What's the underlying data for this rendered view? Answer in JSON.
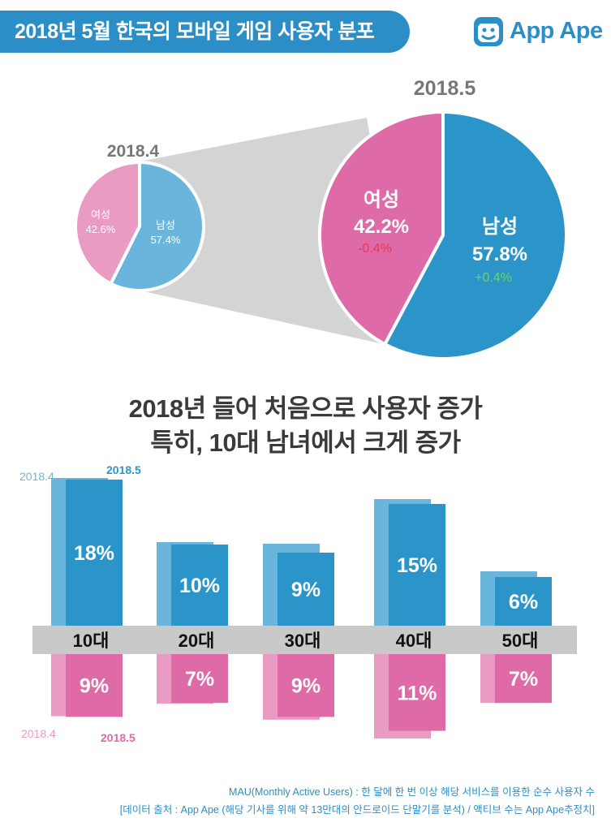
{
  "header": {
    "title": "2018년 5월 한국의 모바일 게임 사용자 분포",
    "logo_text": "App Ape",
    "brand_color": "#2b8ec6"
  },
  "colors": {
    "male_prev": "#6ab5dc",
    "male_curr": "#2b95c9",
    "female_prev": "#e99bc4",
    "female_curr": "#df6aa8",
    "zoom_fill": "#d4d4d4",
    "axis_band": "#c9c9c9",
    "negative": "#e8364e",
    "positive": "#5db84a"
  },
  "headline": {
    "line1": "2018년 들어 처음으로 사용자 증가",
    "line2": "특히, 10대 남녀에서 크게 증가"
  },
  "chart_data": [
    {
      "type": "pie",
      "title": "2018.4",
      "slices": [
        {
          "label": "남성",
          "value": 57.4,
          "text": "57.4%"
        },
        {
          "label": "여성",
          "value": 42.6,
          "text": "42.6%"
        }
      ]
    },
    {
      "type": "pie",
      "title": "2018.5",
      "slices": [
        {
          "label": "남성",
          "value": 57.8,
          "text": "57.8%",
          "change": "+0.4%"
        },
        {
          "label": "여성",
          "value": 42.2,
          "text": "42.2%",
          "change": "-0.4%"
        }
      ]
    },
    {
      "type": "bar",
      "categories": [
        "10대",
        "20대",
        "30대",
        "40대",
        "50대"
      ],
      "series": [
        {
          "name": "2018.4",
          "group": "male",
          "values": [
            18.2,
            10.3,
            10.1,
            15.6,
            6.7
          ]
        },
        {
          "name": "2018.5",
          "group": "male",
          "values": [
            18,
            10,
            9,
            15,
            6
          ]
        },
        {
          "name": "2018.4",
          "group": "female",
          "values": [
            8.9,
            7.1,
            9.4,
            12.1,
            7.0
          ]
        },
        {
          "name": "2018.5",
          "group": "female",
          "values": [
            9,
            7,
            9,
            11,
            7
          ]
        }
      ],
      "value_labels": [
        "18%",
        "10%",
        "9%",
        "15%",
        "6%"
      ],
      "female_value_labels": [
        "9%",
        "7%",
        "9%",
        "11%",
        "7%"
      ],
      "legend_prev": "2018.4",
      "legend_curr": "2018.5"
    }
  ],
  "footnotes": {
    "line1": "MAU(Monthly Active Users) : 한 달에 한 번 이상 해당 서비스를 이용한 순수 사용자 수",
    "line2": "[데이터 출처 : App Ape (해당 기사를 위해 약 13만대의 안드로이드 단말기를 분석) / 액티브 수는 App Ape추정치]"
  }
}
